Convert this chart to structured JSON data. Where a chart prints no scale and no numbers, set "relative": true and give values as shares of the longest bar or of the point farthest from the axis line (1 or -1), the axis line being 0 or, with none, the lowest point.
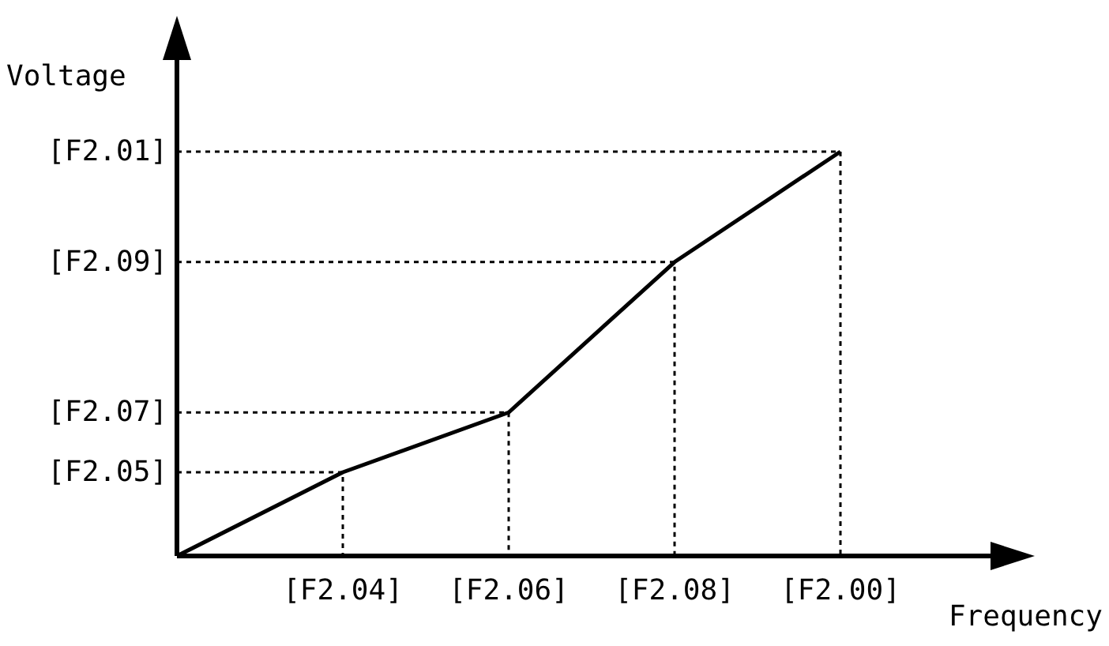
{
  "chart_data": {
    "type": "line",
    "xlabel": "Frequency",
    "ylabel": "Voltage",
    "relative": true,
    "categories": [
      null,
      "[F2.04]",
      "[F2.06]",
      "[F2.08]",
      "[F2.00]"
    ],
    "series": [
      {
        "color": "#000000",
        "values": [
          0,
          0.207,
          0.355,
          0.727,
          1
        ]
      }
    ],
    "annotations": [
      "[F2.05]",
      "[F2.07]",
      "[F2.09]",
      "[F2.01]"
    ],
    "marker": "none",
    "line_style": "solid"
  }
}
